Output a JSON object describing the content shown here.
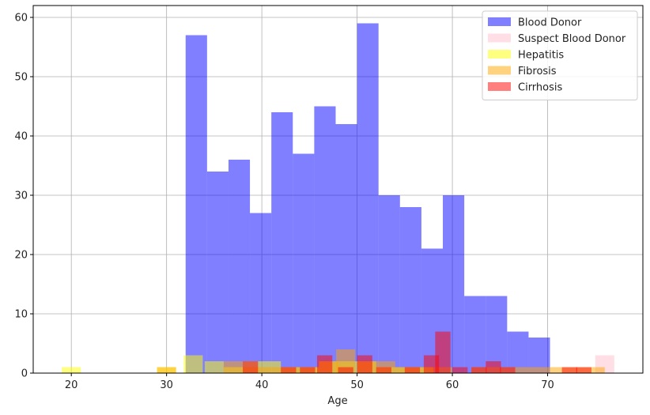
{
  "chart_data": {
    "type": "bar",
    "title": "",
    "xlabel": "Age",
    "ylabel": "",
    "xlim": [
      16,
      80
    ],
    "ylim": [
      0,
      62
    ],
    "grid": true,
    "legend_position": "top-right",
    "x_ticks": [
      20,
      30,
      40,
      50,
      60,
      70
    ],
    "y_ticks": [
      0,
      10,
      20,
      30,
      40,
      50,
      60
    ],
    "series": [
      {
        "name": "Blood Donor",
        "color": "#0000ff",
        "opacity": 0.5,
        "bin_starts": [
          32,
          34.25,
          36.5,
          38.75,
          41,
          43.25,
          45.5,
          47.75,
          50,
          52.25,
          54.5,
          56.75,
          59,
          61.25,
          63.5,
          65.75,
          68
        ],
        "bin_width": 2.25,
        "values": [
          57,
          34,
          36,
          27,
          44,
          37,
          45,
          42,
          59,
          30,
          28,
          21,
          30,
          13,
          13,
          7,
          6
        ]
      },
      {
        "name": "Suspect Blood Donor",
        "color": "#ffc0cb",
        "opacity": 0.5,
        "bin_starts": [
          75
        ],
        "bin_width": 2,
        "values": [
          3
        ]
      },
      {
        "name": "Hepatitis",
        "color": "#ffff00",
        "opacity": 0.5,
        "bin_starts": [
          19,
          29,
          31.8,
          34,
          36,
          38,
          40,
          42,
          44,
          46,
          48,
          50,
          52,
          54,
          56
        ],
        "bin_width": 2,
        "values": [
          1,
          1,
          3,
          2,
          1,
          2,
          2,
          1,
          1,
          2,
          2,
          2,
          1,
          1,
          1
        ]
      },
      {
        "name": "Fibrosis",
        "color": "#ffa500",
        "opacity": 0.5,
        "bin_starts": [
          29,
          36,
          38,
          40,
          42,
          44,
          46,
          47.8,
          50,
          52,
          54,
          56,
          58,
          62,
          64,
          66,
          68,
          70,
          72,
          74
        ],
        "bin_width": 2,
        "values": [
          1,
          2,
          1,
          1,
          1,
          1,
          2,
          4,
          2,
          2,
          1,
          1,
          1,
          1,
          1,
          1,
          1,
          1,
          1,
          1
        ]
      },
      {
        "name": "Cirrhosis",
        "color": "#ff0000",
        "opacity": 0.5,
        "bin_starts": [
          38,
          42,
          44,
          45.8,
          48,
          50,
          52,
          55,
          57,
          58.2,
          60,
          62,
          63.5,
          65,
          71.5,
          73
        ],
        "bin_width": 1.6,
        "values": [
          2,
          1,
          1,
          3,
          1,
          3,
          1,
          1,
          3,
          7,
          1,
          1,
          2,
          1,
          1,
          1
        ]
      }
    ]
  }
}
